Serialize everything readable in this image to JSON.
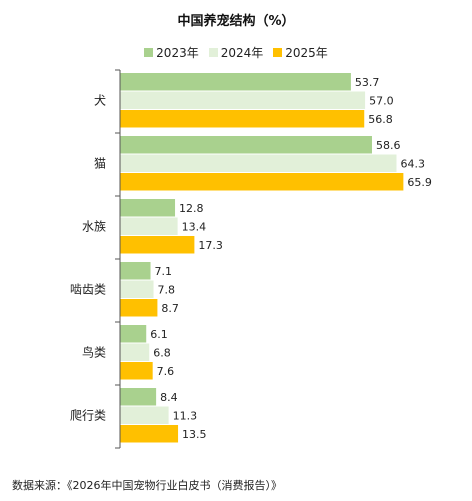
{
  "chart_data": {
    "type": "bar",
    "orientation": "horizontal",
    "title": "中国养宠结构（%）",
    "categories": [
      "犬",
      "猫",
      "水族",
      "啮齿类",
      "鸟类",
      "爬行类"
    ],
    "series": [
      {
        "name": "2023年",
        "color": "#a9d18e",
        "values": [
          53.7,
          58.6,
          12.8,
          7.1,
          6.1,
          8.4
        ]
      },
      {
        "name": "2024年",
        "color": "#e2f0d9",
        "values": [
          57.0,
          64.3,
          13.4,
          7.8,
          6.8,
          11.3
        ]
      },
      {
        "name": "2025年",
        "color": "#ffc000",
        "values": [
          56.8,
          65.9,
          17.3,
          8.7,
          7.6,
          13.5
        ]
      }
    ],
    "xlim": [
      0,
      70
    ],
    "legend_position": "top",
    "grid": false
  },
  "source_note": "数据来源：《2026年中国宠物行业白皮书（消费报告）》"
}
